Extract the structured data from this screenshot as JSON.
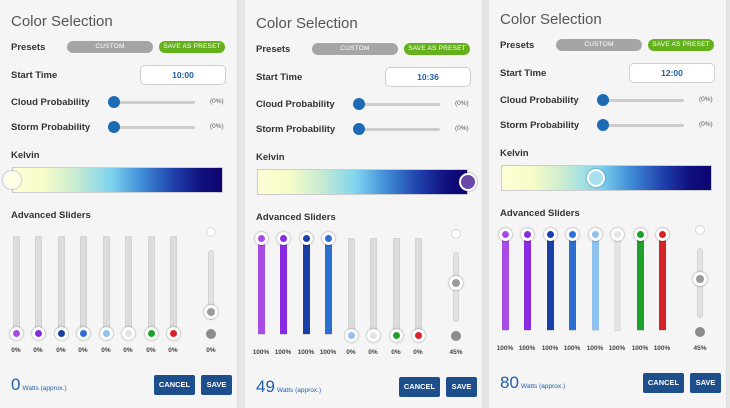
{
  "labels": {
    "title": "Color Selection",
    "presets": "Presets",
    "custom": "CUSTOM",
    "save_as_preset": "SAVE AS PRESET",
    "start_time": "Start Time",
    "cloud_probability": "Cloud Probability",
    "storm_probability": "Storm Probability",
    "kelvin": "Kelvin",
    "advanced_sliders": "Advanced Sliders",
    "watts_unit": "Watts (approx.)",
    "cancel": "CANCEL",
    "save": "SAVE"
  },
  "colors": {
    "accent": "#1e6bb5",
    "button": "#1d4f8c",
    "preset_custom": "#a5a5a5",
    "preset_save": "#64b11c",
    "channels": [
      "#a94be6",
      "#8a2be2",
      "#1a3fa6",
      "#2b6fd0",
      "#8ec3f0",
      "#e4e4e4",
      "#1fa02a",
      "#d6232a"
    ],
    "master_idle": "#9b9b9b"
  },
  "panels": [
    {
      "start_time": "10:00",
      "cloud_probability": "(0%)",
      "storm_probability": "(0%)",
      "cloud_value": 0,
      "storm_value": 0,
      "kelvin_position": 0.0,
      "kelvin_knob_color": "#ffffe0",
      "channels": [
        {
          "value": 0,
          "label": "0%"
        },
        {
          "value": 0,
          "label": "0%"
        },
        {
          "value": 0,
          "label": "0%"
        },
        {
          "value": 0,
          "label": "0%"
        },
        {
          "value": 0,
          "label": "0%"
        },
        {
          "value": 0,
          "label": "0%"
        },
        {
          "value": 0,
          "label": "0%"
        },
        {
          "value": 0,
          "label": "0%"
        }
      ],
      "master": {
        "value": 0,
        "label": "0%"
      },
      "watts": "0"
    },
    {
      "start_time": "10:36",
      "cloud_probability": "(0%)",
      "storm_probability": "(0%)",
      "cloud_value": 0,
      "storm_value": 0,
      "kelvin_position": 1.0,
      "kelvin_knob_color": "#6a47a8",
      "channels": [
        {
          "value": 100,
          "label": "100%"
        },
        {
          "value": 100,
          "label": "100%"
        },
        {
          "value": 100,
          "label": "100%"
        },
        {
          "value": 100,
          "label": "100%"
        },
        {
          "value": 0,
          "label": "0%"
        },
        {
          "value": 0,
          "label": "0%"
        },
        {
          "value": 0,
          "label": "0%"
        },
        {
          "value": 0,
          "label": "0%"
        }
      ],
      "master": {
        "value": 45,
        "label": "45%"
      },
      "watts": "49"
    },
    {
      "start_time": "12:00",
      "cloud_probability": "(0%)",
      "storm_probability": "(0%)",
      "cloud_value": 0,
      "storm_value": 0,
      "kelvin_position": 0.45,
      "kelvin_knob_color": "#a8e0f0",
      "channels": [
        {
          "value": 100,
          "label": "100%"
        },
        {
          "value": 100,
          "label": "100%"
        },
        {
          "value": 100,
          "label": "100%"
        },
        {
          "value": 100,
          "label": "100%"
        },
        {
          "value": 100,
          "label": "100%"
        },
        {
          "value": 100,
          "label": "100%"
        },
        {
          "value": 100,
          "label": "100%"
        },
        {
          "value": 100,
          "label": "100%"
        }
      ],
      "master": {
        "value": 45,
        "label": "45%"
      },
      "watts": "80"
    }
  ]
}
